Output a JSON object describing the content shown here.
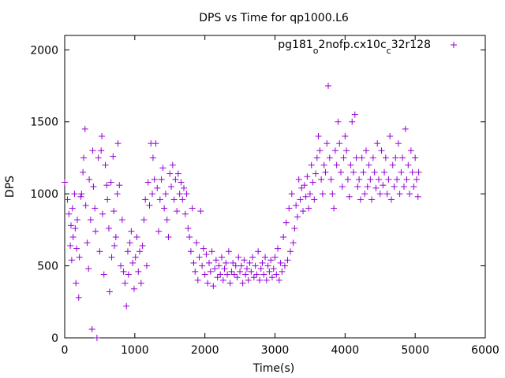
{
  "chart_data": {
    "type": "scatter",
    "title": "DPS vs Time for qp1000.L6",
    "xlabel": "Time(s)",
    "ylabel": "DPS",
    "xlim": [
      0,
      6000
    ],
    "ylim": [
      0,
      2100
    ],
    "xticks": [
      0,
      1000,
      2000,
      3000,
      4000,
      5000,
      6000
    ],
    "yticks": [
      0,
      500,
      1000,
      1500,
      2000
    ],
    "grid": false,
    "legend_position": "top-right",
    "marker": "plus",
    "series": [
      {
        "name_parts": [
          "pg181",
          "o",
          "2nofp.cx10c",
          "c",
          "32r128"
        ],
        "color": "#9400d3",
        "points": [
          [
            0,
            1080
          ],
          [
            40,
            960
          ],
          [
            60,
            860
          ],
          [
            80,
            640
          ],
          [
            90,
            780
          ],
          [
            100,
            540
          ],
          [
            110,
            900
          ],
          [
            120,
            700
          ],
          [
            140,
            1000
          ],
          [
            150,
            760
          ],
          [
            160,
            380
          ],
          [
            170,
            620
          ],
          [
            180,
            820
          ],
          [
            200,
            280
          ],
          [
            210,
            560
          ],
          [
            230,
            980
          ],
          [
            240,
            1000
          ],
          [
            260,
            1150
          ],
          [
            270,
            1250
          ],
          [
            290,
            1450
          ],
          [
            300,
            920
          ],
          [
            320,
            660
          ],
          [
            340,
            480
          ],
          [
            350,
            1100
          ],
          [
            370,
            820
          ],
          [
            390,
            60
          ],
          [
            400,
            1300
          ],
          [
            410,
            1050
          ],
          [
            430,
            900
          ],
          [
            440,
            740
          ],
          [
            460,
            0
          ],
          [
            480,
            1250
          ],
          [
            500,
            600
          ],
          [
            520,
            1300
          ],
          [
            530,
            1400
          ],
          [
            540,
            860
          ],
          [
            560,
            440
          ],
          [
            580,
            1200
          ],
          [
            600,
            1060
          ],
          [
            610,
            960
          ],
          [
            630,
            760
          ],
          [
            640,
            320
          ],
          [
            660,
            1080
          ],
          [
            670,
            560
          ],
          [
            690,
            1260
          ],
          [
            700,
            880
          ],
          [
            710,
            640
          ],
          [
            730,
            700
          ],
          [
            750,
            1000
          ],
          [
            760,
            1350
          ],
          [
            780,
            1060
          ],
          [
            800,
            500
          ],
          [
            820,
            820
          ],
          [
            840,
            460
          ],
          [
            860,
            380
          ],
          [
            880,
            220
          ],
          [
            900,
            600
          ],
          [
            910,
            440
          ],
          [
            930,
            660
          ],
          [
            950,
            740
          ],
          [
            970,
            520
          ],
          [
            990,
            340
          ],
          [
            1010,
            560
          ],
          [
            1030,
            700
          ],
          [
            1050,
            460
          ],
          [
            1070,
            600
          ],
          [
            1090,
            380
          ],
          [
            1110,
            640
          ],
          [
            1130,
            820
          ],
          [
            1150,
            960
          ],
          [
            1170,
            500
          ],
          [
            1190,
            1080
          ],
          [
            1210,
            920
          ],
          [
            1230,
            1350
          ],
          [
            1250,
            1000
          ],
          [
            1260,
            1250
          ],
          [
            1280,
            1100
          ],
          [
            1300,
            1350
          ],
          [
            1320,
            1040
          ],
          [
            1340,
            740
          ],
          [
            1360,
            960
          ],
          [
            1380,
            1100
          ],
          [
            1400,
            1180
          ],
          [
            1420,
            900
          ],
          [
            1440,
            1000
          ],
          [
            1460,
            820
          ],
          [
            1480,
            700
          ],
          [
            1500,
            1140
          ],
          [
            1520,
            1050
          ],
          [
            1540,
            1200
          ],
          [
            1560,
            960
          ],
          [
            1580,
            1100
          ],
          [
            1600,
            880
          ],
          [
            1620,
            1140
          ],
          [
            1640,
            1000
          ],
          [
            1660,
            1080
          ],
          [
            1680,
            960
          ],
          [
            1700,
            1040
          ],
          [
            1720,
            860
          ],
          [
            1740,
            1000
          ],
          [
            1760,
            760
          ],
          [
            1780,
            700
          ],
          [
            1800,
            600
          ],
          [
            1820,
            900
          ],
          [
            1840,
            520
          ],
          [
            1860,
            460
          ],
          [
            1880,
            660
          ],
          [
            1900,
            400
          ],
          [
            1920,
            560
          ],
          [
            1940,
            880
          ],
          [
            1960,
            500
          ],
          [
            1980,
            620
          ],
          [
            2000,
            440
          ],
          [
            2020,
            580
          ],
          [
            2040,
            380
          ],
          [
            2060,
            520
          ],
          [
            2080,
            460
          ],
          [
            2100,
            600
          ],
          [
            2120,
            360
          ],
          [
            2140,
            480
          ],
          [
            2160,
            540
          ],
          [
            2180,
            420
          ],
          [
            2200,
            500
          ],
          [
            2220,
            440
          ],
          [
            2240,
            560
          ],
          [
            2260,
            400
          ],
          [
            2280,
            480
          ],
          [
            2300,
            520
          ],
          [
            2320,
            440
          ],
          [
            2340,
            600
          ],
          [
            2360,
            380
          ],
          [
            2380,
            460
          ],
          [
            2400,
            520
          ],
          [
            2420,
            440
          ],
          [
            2440,
            500
          ],
          [
            2460,
            420
          ],
          [
            2480,
            560
          ],
          [
            2500,
            460
          ],
          [
            2520,
            500
          ],
          [
            2540,
            380
          ],
          [
            2560,
            540
          ],
          [
            2580,
            440
          ],
          [
            2600,
            480
          ],
          [
            2620,
            400
          ],
          [
            2640,
            520
          ],
          [
            2660,
            460
          ],
          [
            2680,
            560
          ],
          [
            2700,
            420
          ],
          [
            2720,
            500
          ],
          [
            2740,
            440
          ],
          [
            2760,
            600
          ],
          [
            2780,
            400
          ],
          [
            2800,
            480
          ],
          [
            2820,
            520
          ],
          [
            2840,
            440
          ],
          [
            2860,
            560
          ],
          [
            2880,
            400
          ],
          [
            2900,
            500
          ],
          [
            2920,
            460
          ],
          [
            2940,
            540
          ],
          [
            2960,
            420
          ],
          [
            2980,
            480
          ],
          [
            3000,
            560
          ],
          [
            3020,
            440
          ],
          [
            3040,
            620
          ],
          [
            3060,
            400
          ],
          [
            3080,
            520
          ],
          [
            3100,
            460
          ],
          [
            3120,
            700
          ],
          [
            3140,
            500
          ],
          [
            3160,
            800
          ],
          [
            3180,
            540
          ],
          [
            3200,
            900
          ],
          [
            3220,
            600
          ],
          [
            3240,
            1000
          ],
          [
            3260,
            660
          ],
          [
            3280,
            760
          ],
          [
            3300,
            920
          ],
          [
            3320,
            840
          ],
          [
            3340,
            1100
          ],
          [
            3360,
            960
          ],
          [
            3380,
            1040
          ],
          [
            3400,
            880
          ],
          [
            3420,
            1060
          ],
          [
            3440,
            980
          ],
          [
            3460,
            1120
          ],
          [
            3480,
            900
          ],
          [
            3500,
            1000
          ],
          [
            3520,
            1200
          ],
          [
            3540,
            1080
          ],
          [
            3560,
            960
          ],
          [
            3580,
            1140
          ],
          [
            3600,
            1250
          ],
          [
            3620,
            1400
          ],
          [
            3640,
            1300
          ],
          [
            3660,
            1100
          ],
          [
            3680,
            1000
          ],
          [
            3700,
            1200
          ],
          [
            3720,
            1150
          ],
          [
            3740,
            1350
          ],
          [
            3760,
            1750
          ],
          [
            3780,
            1250
          ],
          [
            3800,
            1100
          ],
          [
            3820,
            1000
          ],
          [
            3840,
            900
          ],
          [
            3860,
            1300
          ],
          [
            3880,
            1200
          ],
          [
            3900,
            1500
          ],
          [
            3920,
            1350
          ],
          [
            3940,
            1150
          ],
          [
            3960,
            1050
          ],
          [
            3980,
            1250
          ],
          [
            4000,
            1400
          ],
          [
            4020,
            1300
          ],
          [
            4040,
            1100
          ],
          [
            4060,
            980
          ],
          [
            4080,
            1200
          ],
          [
            4100,
            1500
          ],
          [
            4120,
            1150
          ],
          [
            4140,
            1550
          ],
          [
            4160,
            1250
          ],
          [
            4180,
            1050
          ],
          [
            4200,
            1100
          ],
          [
            4220,
            960
          ],
          [
            4240,
            1250
          ],
          [
            4260,
            1150
          ],
          [
            4280,
            1000
          ],
          [
            4300,
            1300
          ],
          [
            4320,
            1050
          ],
          [
            4340,
            1200
          ],
          [
            4360,
            1100
          ],
          [
            4380,
            960
          ],
          [
            4400,
            1250
          ],
          [
            4420,
            1150
          ],
          [
            4440,
            1040
          ],
          [
            4460,
            1350
          ],
          [
            4480,
            1100
          ],
          [
            4500,
            1000
          ],
          [
            4520,
            1300
          ],
          [
            4540,
            1060
          ],
          [
            4560,
            1150
          ],
          [
            4580,
            1250
          ],
          [
            4600,
            1000
          ],
          [
            4620,
            1100
          ],
          [
            4640,
            1400
          ],
          [
            4660,
            960
          ],
          [
            4680,
            1200
          ],
          [
            4700,
            1050
          ],
          [
            4720,
            1250
          ],
          [
            4740,
            1100
          ],
          [
            4760,
            1350
          ],
          [
            4780,
            1000
          ],
          [
            4800,
            1150
          ],
          [
            4820,
            1250
          ],
          [
            4840,
            1050
          ],
          [
            4860,
            1450
          ],
          [
            4880,
            1100
          ],
          [
            4900,
            1200
          ],
          [
            4920,
            1000
          ],
          [
            4940,
            1300
          ],
          [
            4960,
            1150
          ],
          [
            4980,
            1050
          ],
          [
            5000,
            1250
          ],
          [
            5020,
            1100
          ],
          [
            5040,
            980
          ],
          [
            5050,
            1150
          ]
        ]
      }
    ]
  }
}
